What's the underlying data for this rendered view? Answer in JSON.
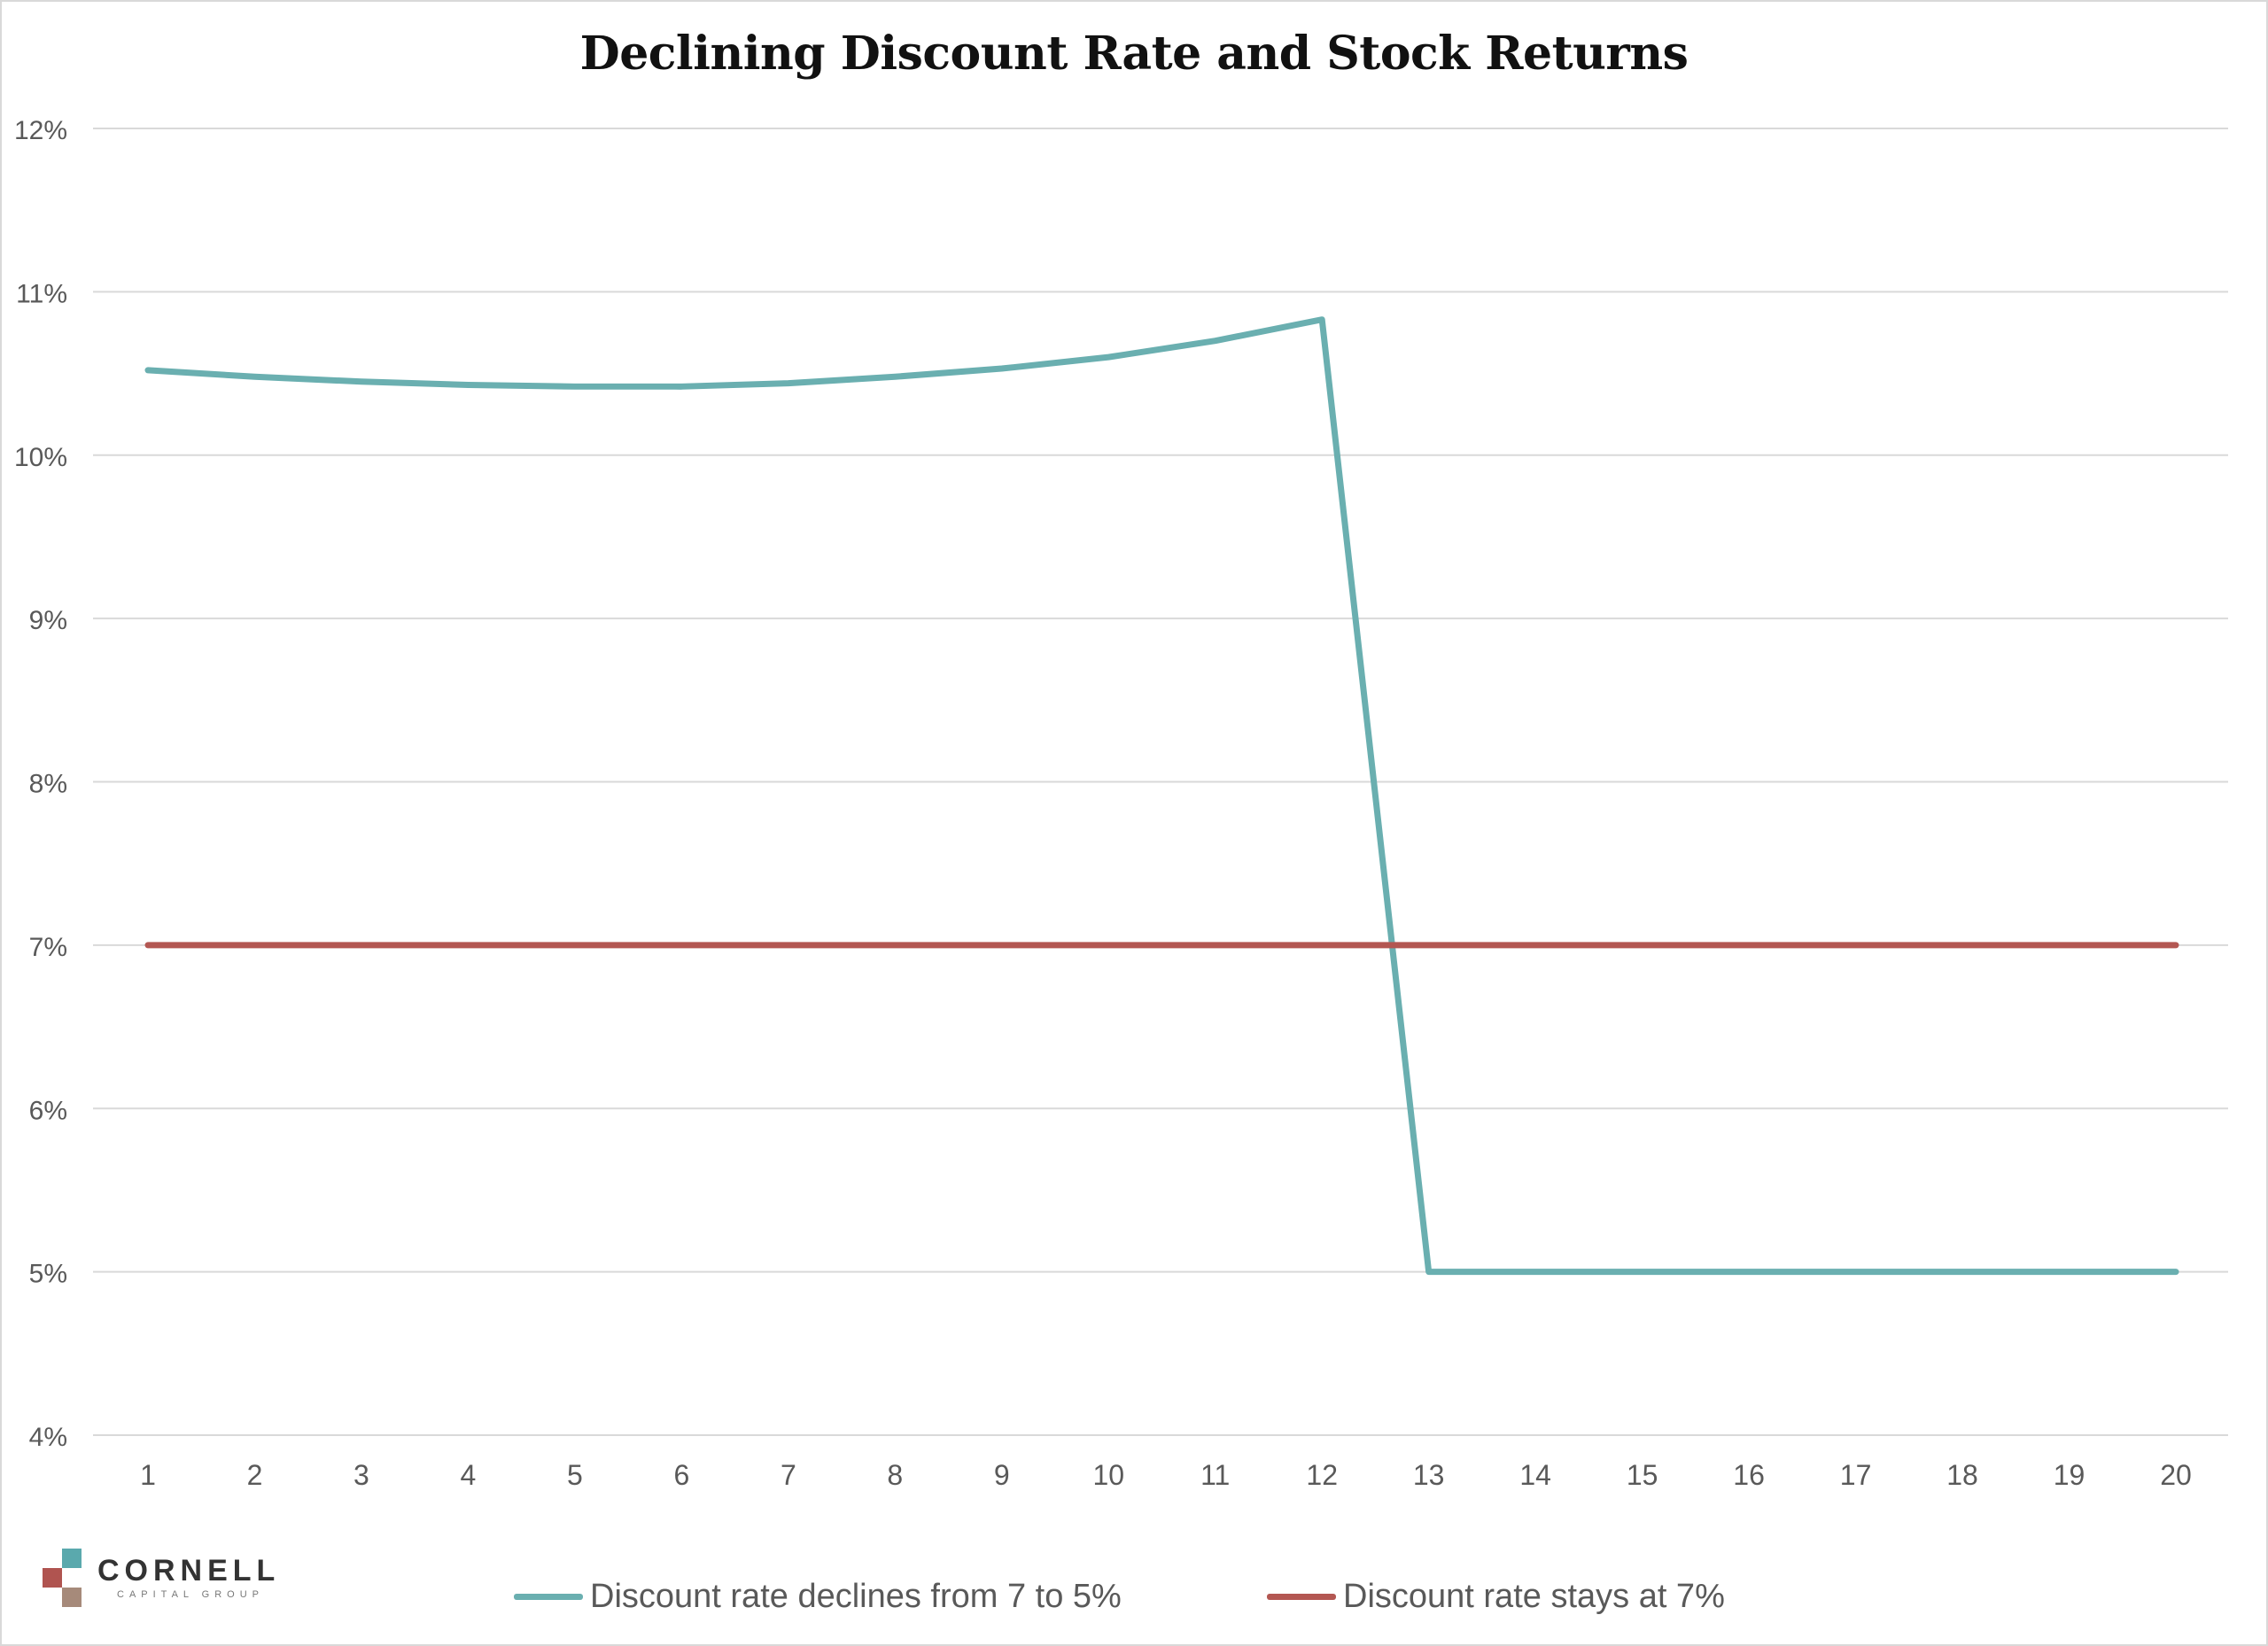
{
  "chart_data": {
    "type": "line",
    "title": "Declining Discount Rate and Stock Returns",
    "xlabel": "",
    "ylabel": "",
    "x": [
      1,
      2,
      3,
      4,
      5,
      6,
      7,
      8,
      9,
      10,
      11,
      12,
      13,
      14,
      15,
      16,
      17,
      18,
      19,
      20
    ],
    "ylim": [
      4,
      12
    ],
    "y_ticks": [
      "4%",
      "5%",
      "6%",
      "7%",
      "8%",
      "9%",
      "10%",
      "11%",
      "12%"
    ],
    "grid": true,
    "legend_position": "bottom",
    "series": [
      {
        "name": "Discount rate declines from 7 to 5%",
        "color": "#6aafb0",
        "values": [
          10.52,
          10.48,
          10.45,
          10.43,
          10.42,
          10.42,
          10.44,
          10.48,
          10.53,
          10.6,
          10.7,
          10.83,
          5,
          5,
          5,
          5,
          5,
          5,
          5,
          5
        ]
      },
      {
        "name": "Discount rate stays at 7%",
        "color": "#b35752",
        "values": [
          7,
          7,
          7,
          7,
          7,
          7,
          7,
          7,
          7,
          7,
          7,
          7,
          7,
          7,
          7,
          7,
          7,
          7,
          7,
          7
        ]
      }
    ]
  },
  "logo": {
    "name": "CORNELL",
    "subtitle": "CAPITAL GROUP",
    "colors": [
      "#5aa9ad",
      "#b05450",
      "#a68a7a"
    ]
  }
}
